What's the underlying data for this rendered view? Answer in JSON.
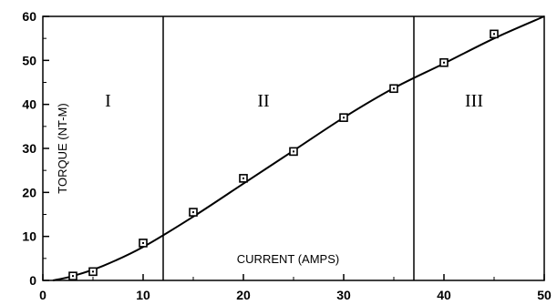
{
  "chart_data": {
    "type": "scatter",
    "title": "",
    "xlabel": "CURRENT (AMPS)",
    "ylabel": "TORQUE (NT-M)",
    "xlim": [
      0,
      50
    ],
    "ylim": [
      0,
      60
    ],
    "xticks": [
      0,
      10,
      20,
      30,
      40,
      50
    ],
    "yticks": [
      0,
      10,
      20,
      30,
      40,
      50,
      60
    ],
    "x_tick_labels": [
      "0",
      "10",
      "20",
      "30",
      "40",
      "50"
    ],
    "y_tick_labels": [
      "0",
      "10",
      "20",
      "30",
      "40",
      "50",
      "60"
    ],
    "grid": false,
    "series": [
      {
        "type": "scatter",
        "marker": "square",
        "x": [
          3,
          5,
          10,
          15,
          20,
          25,
          30,
          35,
          40,
          45
        ],
        "y": [
          1,
          2,
          8.5,
          15.5,
          23.2,
          29.3,
          37,
          43.6,
          49.5,
          56
        ]
      },
      {
        "type": "line",
        "x": [
          1,
          3,
          6,
          10,
          15,
          20,
          25,
          30,
          35,
          40,
          45,
          50
        ],
        "y": [
          0,
          1,
          3.3,
          7.6,
          14.5,
          22,
          29.5,
          37,
          43.7,
          49.3,
          55,
          60
        ]
      }
    ],
    "region_dividers_x": [
      12,
      37
    ],
    "regions": [
      {
        "label": "I",
        "x": 6.5,
        "y": 39.5
      },
      {
        "label": "II",
        "x": 22,
        "y": 39.5
      },
      {
        "label": "III",
        "x": 43,
        "y": 39.5
      }
    ],
    "colors": {
      "line": "#000000",
      "marker": "#000000",
      "background": "#ffffff"
    }
  }
}
